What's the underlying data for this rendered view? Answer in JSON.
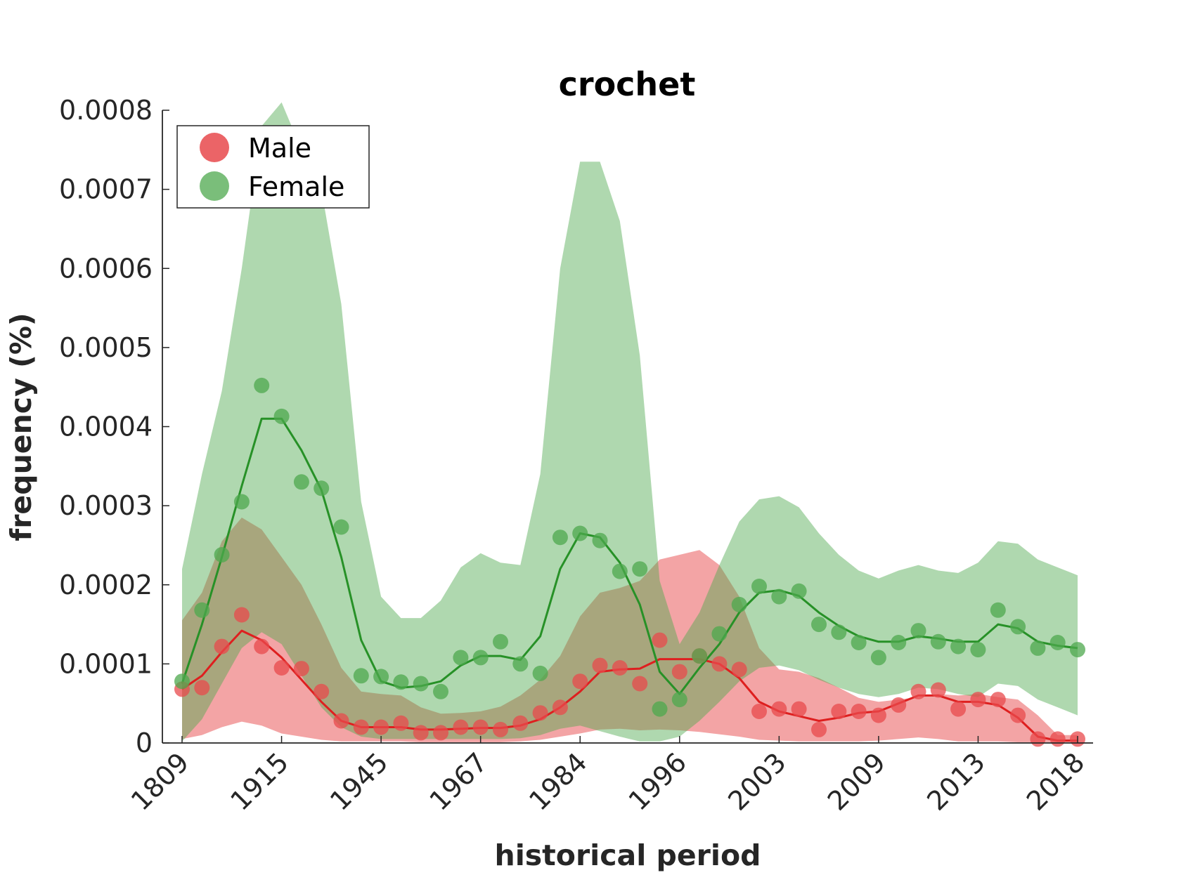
{
  "chart_data": {
    "type": "scatter",
    "title": "crochet",
    "xlabel": "historical period",
    "ylabel": "frequency (%)",
    "x_tick_labels": [
      "1809",
      "1915",
      "1945",
      "1967",
      "1984",
      "1996",
      "2003",
      "2009",
      "2013",
      "2018"
    ],
    "y_tick_labels": [
      "0",
      "0.0001",
      "0.0002",
      "0.0003",
      "0.0004",
      "0.0005",
      "0.0006",
      "0.0007",
      "0.0008"
    ],
    "ylim": [
      0,
      0.0008
    ],
    "x_index_range": [
      0,
      45
    ],
    "legend_position": "top-left",
    "grid": false,
    "series": [
      {
        "name": "Male",
        "color": "#e8494c",
        "line_color": "#de1f1f",
        "points": [
          6.8e-05,
          7e-05,
          0.000122,
          0.000162,
          0.000122,
          9.5e-05,
          9.4e-05,
          6.5e-05,
          2.8e-05,
          2e-05,
          2e-05,
          2.5e-05,
          1.3e-05,
          1.3e-05,
          2e-05,
          2e-05,
          1.7e-05,
          2.5e-05,
          3.8e-05,
          4.5e-05,
          7.8e-05,
          9.8e-05,
          9.5e-05,
          7.5e-05,
          0.00013,
          9e-05,
          0.00011,
          0.0001,
          9.3e-05,
          4e-05,
          4.3e-05,
          4.3e-05,
          1.7e-05,
          4e-05,
          4e-05,
          3.5e-05,
          4.8e-05,
          6.5e-05,
          6.7e-05,
          4.3e-05,
          5.5e-05,
          5.5e-05,
          3.5e-05,
          5e-06,
          5e-06,
          5e-06
        ],
        "smooth": [
          6.8e-05,
          8.5e-05,
          0.000115,
          0.000142,
          0.00013,
          0.000108,
          8e-05,
          5.2e-05,
          2.8e-05,
          2e-05,
          2e-05,
          2e-05,
          1.7e-05,
          1.7e-05,
          1.8e-05,
          1.9e-05,
          1.9e-05,
          2.2e-05,
          3e-05,
          4.5e-05,
          6.5e-05,
          9e-05,
          9.3e-05,
          9.4e-05,
          0.000106,
          0.000106,
          0.000106,
          0.0001,
          8.2e-05,
          5.2e-05,
          4e-05,
          3.4e-05,
          2.8e-05,
          3.2e-05,
          3.8e-05,
          4e-05,
          5e-05,
          6e-05,
          6e-05,
          5.2e-05,
          5.2e-05,
          4.8e-05,
          3.2e-05,
          8e-06,
          3e-06,
          3e-06
        ],
        "band_upper": [
          0.000155,
          0.00019,
          0.000255,
          0.000285,
          0.00027,
          0.000235,
          0.0002,
          0.00015,
          9.5e-05,
          6.5e-05,
          6.2e-05,
          6e-05,
          4.5e-05,
          3.7e-05,
          3.8e-05,
          4e-05,
          4.6e-05,
          6e-05,
          8e-05,
          0.00011,
          0.00016,
          0.00019,
          0.000196,
          0.000205,
          0.000232,
          0.000238,
          0.000244,
          0.000225,
          0.000185,
          0.00012,
          9.3e-05,
          9e-05,
          8.2e-05,
          7e-05,
          5.7e-05,
          5.2e-05,
          5.5e-05,
          5.8e-05,
          6.2e-05,
          6e-05,
          6.2e-05,
          5.8e-05,
          5.5e-05,
          3.5e-05,
          1e-05,
          1e-05
        ],
        "band_lower": [
          5e-06,
          1e-05,
          2e-05,
          2.7e-05,
          2.2e-05,
          1.2e-05,
          8e-06,
          4e-06,
          2e-06,
          2e-06,
          2e-06,
          2e-06,
          1e-06,
          1e-06,
          1e-06,
          1e-06,
          1e-06,
          2e-06,
          4e-06,
          8e-06,
          1.2e-05,
          1.7e-05,
          1.8e-05,
          1.6e-05,
          1.7e-05,
          1.6e-05,
          1.4e-05,
          1.1e-05,
          8e-06,
          4e-06,
          3e-06,
          2e-06,
          2e-06,
          2e-06,
          2e-06,
          3e-06,
          5e-06,
          7e-06,
          5e-06,
          2e-06,
          2e-06,
          2e-06,
          1e-06,
          1e-06,
          1e-06,
          1e-06
        ]
      },
      {
        "name": "Female",
        "color": "#4da84d",
        "line_color": "#279127",
        "points": [
          7.8e-05,
          0.000168,
          0.000238,
          0.000305,
          0.000452,
          0.000413,
          0.00033,
          0.000322,
          0.000273,
          8.5e-05,
          8.4e-05,
          7.7e-05,
          7.5e-05,
          6.5e-05,
          0.000108,
          0.000108,
          0.000128,
          0.0001,
          8.8e-05,
          0.00026,
          0.000265,
          0.000256,
          0.000217,
          0.00022,
          4.3e-05,
          5.5e-05,
          0.00011,
          0.000138,
          0.000175,
          0.000198,
          0.000185,
          0.000192,
          0.00015,
          0.00014,
          0.000127,
          0.000108,
          0.000127,
          0.000142,
          0.000128,
          0.000122,
          0.000118,
          0.000168,
          0.000147,
          0.00012,
          0.000127,
          0.000118
        ],
        "smooth": [
          7.5e-05,
          0.00015,
          0.000235,
          0.000325,
          0.00041,
          0.00041,
          0.00037,
          0.00032,
          0.000235,
          0.00013,
          7.8e-05,
          7e-05,
          7.2e-05,
          7.8e-05,
          9.8e-05,
          0.00011,
          0.00011,
          0.000105,
          0.000135,
          0.00022,
          0.000265,
          0.00026,
          0.000228,
          0.000175,
          9e-05,
          6.2e-05,
          9.5e-05,
          0.000125,
          0.000165,
          0.00019,
          0.000193,
          0.000186,
          0.000165,
          0.000148,
          0.000135,
          0.000128,
          0.000128,
          0.000135,
          0.000132,
          0.000128,
          0.000128,
          0.00015,
          0.000145,
          0.000128,
          0.000123,
          0.00012
        ],
        "band_upper": [
          0.00022,
          0.00034,
          0.000445,
          0.0006,
          0.00078,
          0.00081,
          0.00075,
          0.0007,
          0.000555,
          0.000305,
          0.000185,
          0.000158,
          0.000158,
          0.00018,
          0.000222,
          0.00024,
          0.000228,
          0.000225,
          0.00034,
          0.0006,
          0.000735,
          0.000735,
          0.00066,
          0.00049,
          0.000205,
          0.000125,
          0.000165,
          0.000225,
          0.00028,
          0.000308,
          0.000312,
          0.000298,
          0.000265,
          0.000238,
          0.000218,
          0.000208,
          0.000218,
          0.000225,
          0.000218,
          0.000215,
          0.000228,
          0.000255,
          0.000252,
          0.000232,
          0.000222,
          0.000212
        ],
        "band_lower": [
          2e-06,
          3e-05,
          7.5e-05,
          0.00012,
          0.00014,
          0.000125,
          8.5e-05,
          4.5e-05,
          2e-05,
          8e-06,
          5e-06,
          5e-06,
          5e-06,
          5e-06,
          5e-06,
          5e-06,
          5e-06,
          6e-06,
          1e-05,
          1.8e-05,
          2.2e-05,
          1.5e-05,
          8e-06,
          2e-06,
          2e-06,
          8e-06,
          2.8e-05,
          5.2e-05,
          7.8e-05,
          9.5e-05,
          9.8e-05,
          9.2e-05,
          8e-05,
          7e-05,
          6.2e-05,
          5.8e-05,
          6.2e-05,
          7e-05,
          6.8e-05,
          6.2e-05,
          5.8e-05,
          7.5e-05,
          7.2e-05,
          5.5e-05,
          4.5e-05,
          3.5e-05
        ]
      }
    ]
  }
}
